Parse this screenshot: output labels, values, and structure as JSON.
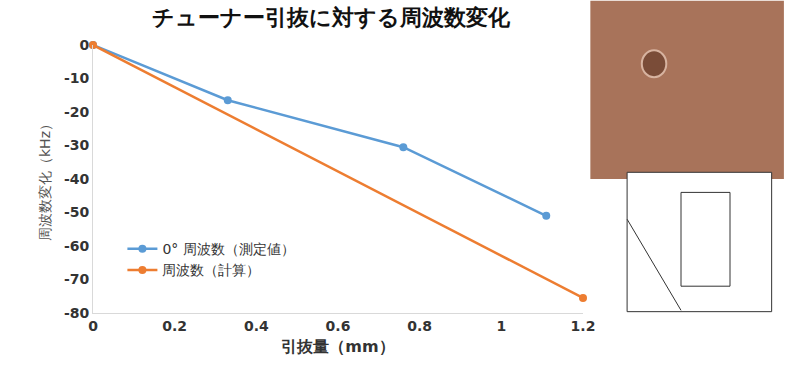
{
  "chart_data": {
    "type": "line",
    "title": "チューナー引抜に対する周波数変化",
    "x_label": "引抜量（mm）",
    "y_label": "周波数変化（kHz）",
    "series": [
      {
        "name": "0° 周波数（測定値）",
        "color": "#5b9bd5",
        "marker": "circle",
        "line_style": "solid",
        "x": [
          0,
          0.33,
          0.76,
          1.11
        ],
        "values": [
          0,
          -16.5,
          -30.5,
          -51
        ]
      },
      {
        "name": "周波数（計算）",
        "color": "#ed7d31",
        "marker": "circle",
        "line_style": "solid",
        "x": [
          0,
          1.2
        ],
        "values": [
          0,
          -75.5
        ]
      }
    ],
    "xlim": [
      0,
      1.2
    ],
    "xticks": [
      0,
      0.2,
      0.4,
      0.6,
      0.8,
      1,
      1.2
    ],
    "ylim": [
      -80,
      0
    ],
    "yticks": [
      -80,
      -70,
      -60,
      -50,
      -40,
      -30,
      -20,
      -10,
      0
    ],
    "grid": false,
    "legend": "lower left"
  }
}
